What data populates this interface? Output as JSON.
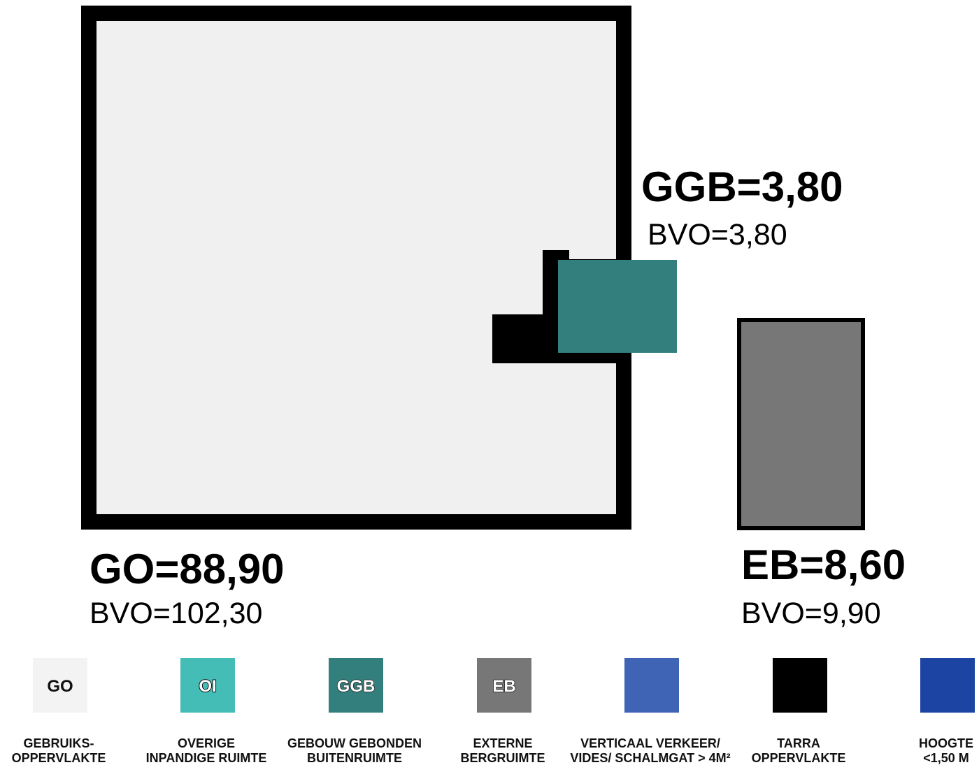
{
  "colors": {
    "go_fill": "#f0f0f0",
    "wall": "#000000",
    "oi": "#44bdb7",
    "ggb": "#337f7e",
    "eb": "#777777",
    "verkeer": "#3f64b6",
    "tarra": "#000000",
    "hoogte": "#1c44a2"
  },
  "areas": {
    "go": {
      "title": "GO=88,90",
      "bvo": "BVO=102,30"
    },
    "ggb": {
      "title": "GGB=3,80",
      "bvo": "BVO=3,80"
    },
    "eb": {
      "title": "EB=8,60",
      "bvo": "BVO=9,90"
    }
  },
  "legend": [
    {
      "code": "GO",
      "line1": "GEBRUIKS-",
      "line2": "OPPERVLAKTE",
      "color": "#f3f3f3",
      "style": "plain"
    },
    {
      "code": "OI",
      "line1": "OVERIGE",
      "line2": "INPANDIGE RUIMTE",
      "color": "#44bdb7",
      "style": "outlined-dark"
    },
    {
      "code": "GGB",
      "line1": "GEBOUW GEBONDEN",
      "line2": "BUITENRUIMTE",
      "color": "#337f7e",
      "style": "outlined"
    },
    {
      "code": "EB",
      "line1": "EXTERNE",
      "line2": "BERGRUIMTE",
      "color": "#777777",
      "style": "outlined"
    },
    {
      "code": "",
      "line1": "VERTICAAL VERKEER/",
      "line2": "VIDES/ SCHALMGAT > 4M²",
      "color": "#3f64b6",
      "style": "plain"
    },
    {
      "code": "",
      "line1": "TARRA",
      "line2": "OPPERVLAKTE",
      "color": "#000000",
      "style": "plain"
    },
    {
      "code": "",
      "line1": "HOOGTE",
      "line2": "<1,50 M",
      "color": "#1c44a2",
      "style": "plain"
    }
  ]
}
